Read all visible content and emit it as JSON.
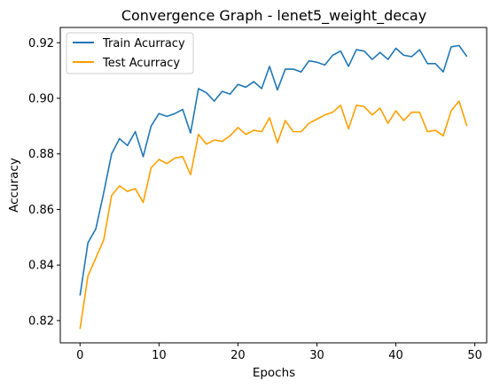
{
  "chart_data": {
    "type": "line",
    "title": "Convergence Graph - lenet5_weight_decay",
    "xlabel": "Epochs",
    "ylabel": "Accuracy",
    "xlim": [
      -2.5,
      51.5
    ],
    "ylim": [
      0.812,
      0.9255
    ],
    "xticks": [
      0,
      10,
      20,
      30,
      40,
      50
    ],
    "yticks": [
      0.82,
      0.84,
      0.86,
      0.88,
      0.9,
      0.92
    ],
    "xtick_labels": [
      "0",
      "10",
      "20",
      "30",
      "40",
      "50"
    ],
    "ytick_labels": [
      "0.82",
      "0.84",
      "0.86",
      "0.88",
      "0.90",
      "0.92"
    ],
    "grid": false,
    "legend_position": "upper-left",
    "x": [
      0,
      1,
      2,
      3,
      4,
      5,
      6,
      7,
      8,
      9,
      10,
      11,
      12,
      13,
      14,
      15,
      16,
      17,
      18,
      19,
      20,
      21,
      22,
      23,
      24,
      25,
      26,
      27,
      28,
      29,
      30,
      31,
      32,
      33,
      34,
      35,
      36,
      37,
      38,
      39,
      40,
      41,
      42,
      43,
      44,
      45,
      46,
      47,
      48,
      49
    ],
    "series": [
      {
        "name": "Train Acurracy",
        "color": "#1f77b4",
        "values": [
          0.829,
          0.848,
          0.853,
          0.866,
          0.88,
          0.8855,
          0.883,
          0.888,
          0.879,
          0.89,
          0.8945,
          0.8935,
          0.8945,
          0.896,
          0.8875,
          0.9035,
          0.902,
          0.899,
          0.9025,
          0.9015,
          0.905,
          0.904,
          0.906,
          0.9035,
          0.9115,
          0.903,
          0.9105,
          0.9105,
          0.9095,
          0.9135,
          0.913,
          0.912,
          0.9155,
          0.917,
          0.9115,
          0.9175,
          0.917,
          0.914,
          0.9165,
          0.914,
          0.918,
          0.9155,
          0.915,
          0.9175,
          0.9125,
          0.9125,
          0.9095,
          0.9185,
          0.919,
          0.915
        ]
      },
      {
        "name": "Test Acurracy",
        "color": "#ff9f00",
        "values": [
          0.817,
          0.836,
          0.8425,
          0.849,
          0.865,
          0.8685,
          0.8665,
          0.8675,
          0.8625,
          0.875,
          0.878,
          0.8765,
          0.8785,
          0.879,
          0.8725,
          0.887,
          0.8835,
          0.885,
          0.8845,
          0.8865,
          0.8895,
          0.887,
          0.8885,
          0.888,
          0.893,
          0.884,
          0.892,
          0.888,
          0.888,
          0.891,
          0.8925,
          0.894,
          0.895,
          0.8975,
          0.889,
          0.8975,
          0.897,
          0.894,
          0.8965,
          0.891,
          0.8955,
          0.892,
          0.895,
          0.895,
          0.888,
          0.8885,
          0.8865,
          0.8955,
          0.899,
          0.89
        ]
      }
    ]
  }
}
